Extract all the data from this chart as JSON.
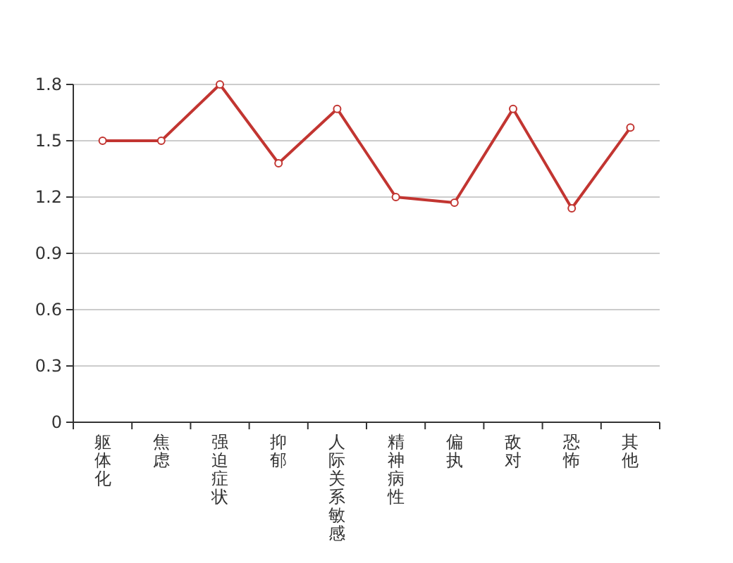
{
  "chart_data": {
    "type": "line",
    "categories": [
      "躯体化",
      "焦虑",
      "强迫症状",
      "抑郁",
      "人际关系敏感",
      "精神病性",
      "偏执",
      "敌对",
      "恐怖",
      "其他"
    ],
    "series": [
      {
        "color": "#c23531",
        "values": [
          1.5,
          1.5,
          1.8,
          1.38,
          1.67,
          1.2,
          1.17,
          1.67,
          1.14,
          1.57
        ]
      }
    ],
    "ylim": [
      0,
      1.8
    ],
    "yticks": [
      0,
      0.3,
      0.6,
      0.9,
      1.2,
      1.5,
      1.8
    ],
    "grid": "y",
    "marker": "circle",
    "line_style": "solid"
  }
}
